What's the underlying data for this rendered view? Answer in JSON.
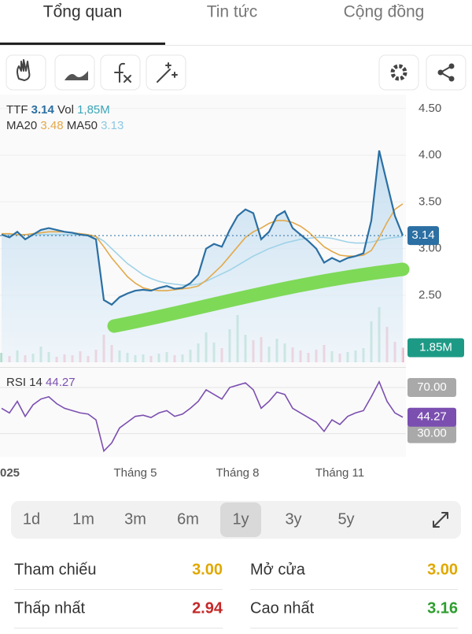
{
  "tabs": [
    "Tổng quan",
    "Tin tức",
    "Cộng đồng"
  ],
  "chart": {
    "type": "line",
    "categories": [
      "025",
      null,
      null,
      null,
      null,
      null,
      null,
      null,
      null,
      null,
      null,
      null,
      null,
      null,
      null,
      null,
      null,
      "Tháng 5",
      null,
      null,
      null,
      null,
      null,
      null,
      null,
      null,
      null,
      null,
      null,
      null,
      "Tháng 8",
      null,
      null,
      null,
      null,
      null,
      null,
      null,
      null,
      null,
      null,
      null,
      null,
      "Tháng 11",
      null,
      null,
      null,
      null,
      null,
      null,
      null,
      null
    ],
    "series": [
      {
        "name": "TTF",
        "color": "#2b6fa3",
        "values": [
          3.15,
          3.12,
          3.18,
          3.1,
          3.15,
          3.2,
          3.22,
          3.2,
          3.18,
          3.17,
          3.15,
          3.14,
          3.1,
          2.45,
          2.4,
          2.48,
          2.52,
          2.55,
          2.56,
          2.55,
          2.58,
          2.6,
          2.57,
          2.58,
          2.63,
          2.72,
          3.0,
          3.05,
          3.02,
          3.2,
          3.35,
          3.42,
          3.38,
          3.1,
          3.18,
          3.35,
          3.4,
          3.22,
          3.15,
          3.08,
          3.0,
          2.85,
          2.9,
          2.86,
          2.9,
          2.92,
          2.95,
          3.3,
          4.05,
          3.7,
          3.35,
          3.14
        ]
      },
      {
        "name": "MA20",
        "color": "#e3a94a",
        "values": [
          3.16,
          3.16,
          3.15,
          3.15,
          3.16,
          3.17,
          3.18,
          3.18,
          3.18,
          3.17,
          3.16,
          3.15,
          3.13,
          3.02,
          2.9,
          2.8,
          2.7,
          2.63,
          2.58,
          2.56,
          2.55,
          2.55,
          2.56,
          2.57,
          2.58,
          2.6,
          2.66,
          2.74,
          2.82,
          2.92,
          3.02,
          3.12,
          3.18,
          3.22,
          3.27,
          3.3,
          3.3,
          3.28,
          3.24,
          3.18,
          3.1,
          3.02,
          2.97,
          2.93,
          2.92,
          2.92,
          2.93,
          2.98,
          3.12,
          3.28,
          3.42,
          3.48
        ]
      },
      {
        "name": "MA50",
        "color": "#9fd2e8",
        "values": [
          3.15,
          3.15,
          3.15,
          3.15,
          3.15,
          3.15,
          3.15,
          3.15,
          3.15,
          3.15,
          3.15,
          3.14,
          3.13,
          3.08,
          3.0,
          2.92,
          2.84,
          2.78,
          2.72,
          2.68,
          2.65,
          2.63,
          2.62,
          2.61,
          2.61,
          2.62,
          2.65,
          2.69,
          2.73,
          2.77,
          2.82,
          2.87,
          2.92,
          2.96,
          3.0,
          3.03,
          3.06,
          3.08,
          3.1,
          3.11,
          3.12,
          3.12,
          3.11,
          3.09,
          3.07,
          3.06,
          3.06,
          3.07,
          3.09,
          3.11,
          3.12,
          3.13
        ]
      }
    ],
    "ylim": [
      1.8,
      4.65
    ],
    "yticks": [
      {
        "value": 2.5,
        "label": "2.50"
      },
      {
        "value": 3,
        "label": "3.00"
      },
      {
        "value": 3.5,
        "label": "3.50"
      },
      {
        "value": 4,
        "label": "4.00"
      },
      {
        "value": 4.5,
        "label": "4.50"
      }
    ],
    "legend": {
      "price": "3.14",
      "vol_label": "Vol",
      "vol": "1,85M",
      "ma20": "3.48",
      "ma50": "3.13"
    },
    "last_price_label": "3.14",
    "volume": {
      "values": [
        1.2,
        0.8,
        1.5,
        0.9,
        1.1,
        2.0,
        1.3,
        0.7,
        1.0,
        0.9,
        1.4,
        0.8,
        1.6,
        3.5,
        2.2,
        1.5,
        1.2,
        0.9,
        1.0,
        0.8,
        1.1,
        1.3,
        0.9,
        1.0,
        1.6,
        2.4,
        3.8,
        2.5,
        1.8,
        4.2,
        6.0,
        3.5,
        2.8,
        3.2,
        2.0,
        3.0,
        2.4,
        1.9,
        1.5,
        1.2,
        1.6,
        2.2,
        1.4,
        1.1,
        1.3,
        1.5,
        1.8,
        5.2,
        7.0,
        4.5,
        2.6,
        1.85
      ],
      "ylim": [
        0,
        8
      ],
      "last_label": "1.85M"
    },
    "rsi": {
      "title": "RSI 14",
      "value": "44.27",
      "color": "#7b4fb0",
      "values": [
        52,
        48,
        58,
        45,
        55,
        60,
        62,
        56,
        52,
        50,
        48,
        47,
        42,
        15,
        22,
        35,
        40,
        45,
        46,
        44,
        48,
        50,
        45,
        47,
        52,
        58,
        68,
        64,
        60,
        70,
        72,
        74,
        68,
        52,
        58,
        66,
        64,
        52,
        48,
        44,
        40,
        32,
        42,
        38,
        45,
        48,
        50,
        62,
        75,
        58,
        48,
        44.27
      ],
      "ylim": [
        10,
        85
      ],
      "yticks": [
        {
          "value": 70,
          "label": "70.00"
        },
        {
          "value": 30,
          "label": "30.00"
        }
      ]
    }
  },
  "ranges": [
    "1d",
    "1m",
    "3m",
    "6m",
    "1y",
    "3y",
    "5y"
  ],
  "stats": [
    {
      "label": "Tham chiếu",
      "value": "3.00"
    },
    {
      "label": "Mở cửa",
      "value": "3.00"
    },
    {
      "label": "Thấp nhất",
      "value": "2.94"
    },
    {
      "label": "Cao nhất",
      "value": "3.16"
    }
  ]
}
